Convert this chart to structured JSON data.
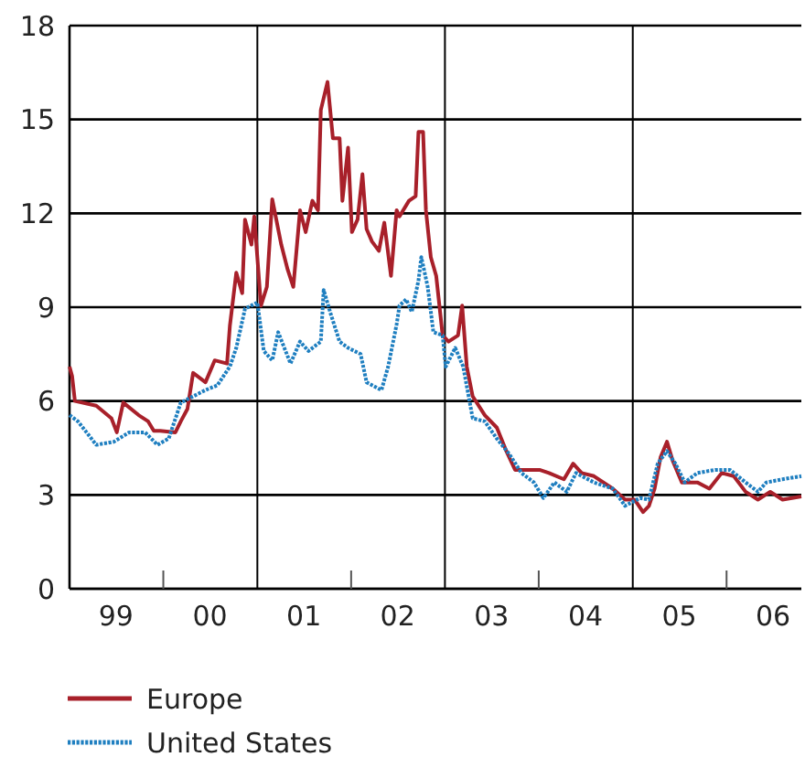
{
  "chart_data": {
    "type": "line",
    "x": [
      "1999-01-01",
      "1999-01-11",
      "1999-01-22",
      "1999-04-15",
      "1999-06-13",
      "1999-07-04",
      "1999-07-29",
      "1999-09-27",
      "1999-11-03",
      "1999-11-25",
      "1999-12-20",
      "2000-02-17",
      "2000-03-09",
      "2000-04-04",
      "2000-04-26",
      "2000-06-13",
      "2000-07-19",
      "2000-09-05",
      "2000-09-16",
      "2000-10-11",
      "2000-11-03",
      "2000-11-14",
      "2000-12-09",
      "2000-12-20",
      "2001-01-15",
      "2001-02-07",
      "2001-02-28",
      "2001-04-04",
      "2001-04-29",
      "2001-05-21",
      "2001-06-16",
      "2001-07-08",
      "2001-08-03",
      "2001-08-25",
      "2001-09-05",
      "2001-10-01",
      "2001-10-22",
      "2001-11-17",
      "2001-11-28",
      "2001-12-20",
      "2002-01-04",
      "2002-01-26",
      "2002-02-14",
      "2002-03-02",
      "2002-03-23",
      "2002-04-19",
      "2002-05-10",
      "2002-06-05",
      "2002-06-27",
      "2002-07-08",
      "2002-08-14",
      "2002-09-09",
      "2002-09-20",
      "2002-10-08",
      "2002-10-19",
      "2002-11-07",
      "2002-11-28",
      "2002-12-23",
      "2003-01-15",
      "2003-02-21",
      "2003-03-09",
      "2003-03-27",
      "2003-04-19",
      "2003-06-05",
      "2003-07-22",
      "2003-08-28",
      "2003-10-01",
      "2003-11-17",
      "2004-01-04",
      "2004-02-10",
      "2004-04-08",
      "2004-05-14",
      "2004-06-16",
      "2004-08-03",
      "2004-10-15",
      "2004-12-02",
      "2005-01-08",
      "2005-02-10",
      "2005-03-05",
      "2005-03-27",
      "2005-04-19",
      "2005-05-14",
      "2005-06-05",
      "2005-07-11",
      "2005-09-09",
      "2005-10-26",
      "2005-12-13",
      "2006-01-29",
      "2006-03-16",
      "2006-05-03",
      "2006-06-20",
      "2006-08-07",
      "2006-10-19"
    ],
    "series": [
      {
        "name": "Europe",
        "color": "#a8202a",
        "line_style": "solid",
        "values": [
          7.1,
          6.8,
          6.0,
          5.85,
          5.45,
          5.0,
          5.95,
          5.55,
          5.35,
          5.05,
          5.05,
          5.0,
          5.35,
          5.75,
          6.9,
          6.6,
          7.3,
          7.2,
          8.4,
          10.1,
          9.45,
          11.8,
          11.0,
          11.9,
          9.05,
          9.65,
          12.45,
          11.0,
          10.2,
          9.65,
          12.1,
          11.4,
          12.4,
          12.1,
          15.3,
          16.2,
          14.4,
          14.4,
          12.4,
          14.1,
          11.4,
          11.8,
          13.25,
          11.5,
          11.1,
          10.8,
          11.7,
          10.0,
          12.1,
          11.9,
          12.4,
          12.55,
          14.6,
          14.6,
          12.1,
          10.6,
          10.0,
          8.1,
          7.9,
          8.1,
          9.05,
          7.1,
          6.15,
          5.55,
          5.15,
          4.4,
          3.8,
          3.8,
          3.8,
          3.7,
          3.5,
          4.0,
          3.7,
          3.6,
          3.2,
          2.85,
          2.85,
          2.45,
          2.65,
          3.2,
          4.2,
          4.7,
          4.1,
          3.4,
          3.4,
          3.2,
          3.7,
          3.6,
          3.1,
          2.85,
          3.1,
          2.85,
          2.95
        ]
      },
      {
        "name": "United States",
        "color": "#1f7fc0",
        "line_style": "dotted",
        "x": [
          "1999-01-01",
          "1999-02-03",
          "1999-04-15",
          "1999-06-23",
          "1999-08-21",
          "1999-10-22",
          "1999-12-09",
          "2000-01-22",
          "2000-03-09",
          "2000-04-26",
          "2000-06-13",
          "2000-07-29",
          "2000-09-16",
          "2000-10-11",
          "2000-11-14",
          "2001-01-01",
          "2001-01-26",
          "2001-02-28",
          "2001-03-23",
          "2001-05-10",
          "2001-06-16",
          "2001-07-19",
          "2001-09-05",
          "2001-09-16",
          "2001-10-11",
          "2001-11-17",
          "2001-12-20",
          "2002-02-07",
          "2002-03-02",
          "2002-04-29",
          "2002-05-25",
          "2002-06-27",
          "2002-07-08",
          "2002-08-03",
          "2002-08-25",
          "2002-09-20",
          "2002-10-01",
          "2002-10-26",
          "2002-11-17",
          "2002-12-23",
          "2003-01-04",
          "2003-02-10",
          "2003-03-13",
          "2003-04-19",
          "2003-06-05",
          "2003-07-22",
          "2003-09-09",
          "2003-10-26",
          "2003-12-13",
          "2004-01-19",
          "2004-03-02",
          "2004-04-19",
          "2004-05-25",
          "2004-08-03",
          "2004-10-15",
          "2004-12-02",
          "2005-01-29",
          "2005-03-05",
          "2005-04-08",
          "2005-05-14",
          "2005-06-16",
          "2005-07-22",
          "2005-09-09",
          "2005-11-17",
          "2006-01-15",
          "2006-03-16",
          "2006-05-03",
          "2006-06-05",
          "2006-08-07",
          "2006-10-19"
        ],
        "values": [
          5.55,
          5.35,
          4.6,
          4.7,
          5.0,
          5.0,
          4.6,
          4.8,
          5.95,
          6.15,
          6.35,
          6.5,
          7.1,
          7.7,
          8.95,
          9.15,
          7.6,
          7.3,
          8.2,
          7.2,
          7.9,
          7.6,
          7.9,
          9.55,
          8.85,
          7.9,
          7.7,
          7.5,
          6.6,
          6.35,
          7.1,
          8.45,
          9.05,
          9.25,
          8.85,
          9.85,
          10.6,
          9.65,
          8.2,
          8.1,
          7.1,
          7.7,
          7.1,
          5.45,
          5.35,
          4.8,
          4.3,
          3.7,
          3.4,
          2.9,
          3.4,
          3.1,
          3.7,
          3.4,
          3.2,
          2.65,
          2.9,
          2.85,
          4.0,
          4.4,
          4.0,
          3.4,
          3.7,
          3.8,
          3.8,
          3.4,
          3.1,
          3.4,
          3.5,
          3.6
        ]
      }
    ],
    "xlim": [
      "1999-01-01",
      "2006-10-19"
    ],
    "xticks": [
      {
        "value": "1999-07-01",
        "label": "99"
      },
      {
        "value": "2000-01-01",
        "label": null
      },
      {
        "value": "2000-07-01",
        "label": "00"
      },
      {
        "value": "2001-07-01",
        "label": "01"
      },
      {
        "value": "2002-01-01",
        "label": null
      },
      {
        "value": "2002-07-01",
        "label": "02"
      },
      {
        "value": "2003-07-01",
        "label": "03"
      },
      {
        "value": "2004-01-01",
        "label": null
      },
      {
        "value": "2004-07-01",
        "label": "04"
      },
      {
        "value": "2005-07-01",
        "label": "05"
      },
      {
        "value": "2006-01-01",
        "label": null
      },
      {
        "value": "2006-07-01",
        "label": "06"
      }
    ],
    "ylim": [
      0,
      18
    ],
    "yticks": [
      0,
      3,
      6,
      9,
      12,
      15,
      18
    ],
    "grid": "y",
    "ref_lines": [
      {
        "axis": "x",
        "value": "2001-01-01",
        "color": "#000000"
      },
      {
        "axis": "x",
        "value": "2003-01-01",
        "color": "#000000"
      },
      {
        "axis": "x",
        "value": "2005-01-01",
        "color": "#000000"
      }
    ],
    "legend": "bottom"
  }
}
